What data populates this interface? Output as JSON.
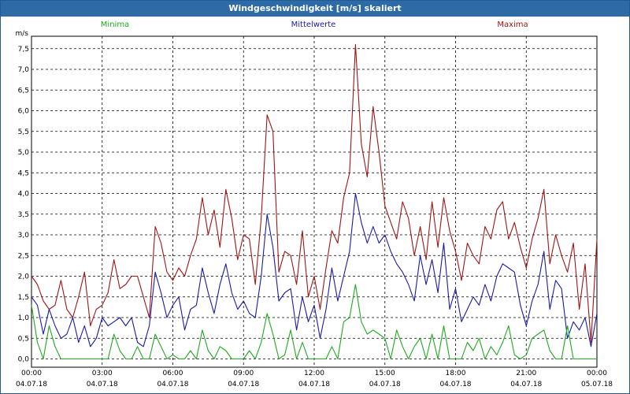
{
  "window": {
    "title": "Windgeschwindigkeit [m/s] skaliert"
  },
  "chart_data": {
    "type": "line",
    "title": "Windgeschwindigkeit [m/s] skaliert",
    "ylabel": "m/s",
    "xlabel": "",
    "ylim": [
      -0.2,
      7.8
    ],
    "yticks": [
      0.0,
      0.5,
      1.0,
      1.5,
      2.0,
      2.5,
      3.0,
      3.5,
      4.0,
      4.5,
      5.0,
      5.5,
      6.0,
      6.5,
      7.0,
      7.5
    ],
    "ytick_labels": [
      "0,0",
      "0,5",
      "1,0",
      "1,5",
      "2,0",
      "2,5",
      "3,0",
      "3,5",
      "4,0",
      "4,5",
      "5,0",
      "5,5",
      "6,0",
      "6,5",
      "7,0",
      "7,5"
    ],
    "xlim": [
      0,
      24
    ],
    "xticks": [
      0,
      3,
      6,
      9,
      12,
      15,
      18,
      21,
      24
    ],
    "xtick_times": [
      "00:00",
      "03:00",
      "06:00",
      "09:00",
      "12:00",
      "15:00",
      "18:00",
      "21:00",
      "00:00"
    ],
    "xtick_dates": [
      "04.07.18",
      "04.07.18",
      "04.07.18",
      "04.07.18",
      "04.07.18",
      "04.07.18",
      "04.07.18",
      "04.07.18",
      "05.07.18"
    ],
    "grid": true,
    "legend": [
      "Minima",
      "Mittelwerte",
      "Maxima"
    ],
    "colors": {
      "Minima": "#1faa1f",
      "Mittelwerte": "#1a1aaa",
      "Maxima": "#a01414"
    },
    "series": [
      {
        "name": "Maxima",
        "x": [
          0,
          0.25,
          0.5,
          0.75,
          1,
          1.25,
          1.5,
          1.75,
          2,
          2.25,
          2.5,
          2.75,
          3,
          3.25,
          3.5,
          3.75,
          4,
          4.25,
          4.5,
          4.75,
          5,
          5.25,
          5.5,
          5.75,
          6,
          6.25,
          6.5,
          6.75,
          7,
          7.25,
          7.5,
          7.75,
          8,
          8.25,
          8.5,
          8.75,
          9,
          9.25,
          9.5,
          9.75,
          10,
          10.25,
          10.5,
          10.75,
          11,
          11.25,
          11.5,
          11.75,
          12,
          12.25,
          12.5,
          12.75,
          13,
          13.25,
          13.5,
          13.75,
          14,
          14.25,
          14.5,
          14.75,
          15,
          15.25,
          15.5,
          15.75,
          16,
          16.25,
          16.5,
          16.75,
          17,
          17.25,
          17.5,
          17.75,
          18,
          18.25,
          18.5,
          18.75,
          19,
          19.25,
          19.5,
          19.75,
          20,
          20.25,
          20.5,
          20.75,
          21,
          21.25,
          21.5,
          21.75,
          22,
          22.25,
          22.5,
          22.75,
          23,
          23.25,
          23.5,
          23.75,
          24
        ],
        "y": [
          2.0,
          1.8,
          1.4,
          1.2,
          1.3,
          1.9,
          1.2,
          1.0,
          1.5,
          2.1,
          0.8,
          1.2,
          1.3,
          1.6,
          2.4,
          1.7,
          1.8,
          2.0,
          2.0,
          1.5,
          1.0,
          3.2,
          2.8,
          2.1,
          1.9,
          2.2,
          2.0,
          2.5,
          2.9,
          3.9,
          3.0,
          3.6,
          2.7,
          4.1,
          3.4,
          2.4,
          3.0,
          2.9,
          1.8,
          3.4,
          5.9,
          5.5,
          2.1,
          2.6,
          2.5,
          1.8,
          3.1,
          1.5,
          2.0,
          1.2,
          2.2,
          3.1,
          2.8,
          3.9,
          4.5,
          7.6,
          5.2,
          4.4,
          6.1,
          5.0,
          3.7,
          3.3,
          2.9,
          3.8,
          3.4,
          2.5,
          3.2,
          2.4,
          3.8,
          2.7,
          3.9,
          3.1,
          2.6,
          1.9,
          2.8,
          2.5,
          2.3,
          3.2,
          2.9,
          3.6,
          3.8,
          2.9,
          3.3,
          2.7,
          2.2,
          2.9,
          3.4,
          4.1,
          2.3,
          3.0,
          2.5,
          2.1,
          2.8,
          1.2,
          2.3,
          0.4,
          2.9
        ]
      },
      {
        "name": "Mittelwerte",
        "x": [
          0,
          0.25,
          0.5,
          0.75,
          1,
          1.25,
          1.5,
          1.75,
          2,
          2.25,
          2.5,
          2.75,
          3,
          3.25,
          3.5,
          3.75,
          4,
          4.25,
          4.5,
          4.75,
          5,
          5.25,
          5.5,
          5.75,
          6,
          6.25,
          6.5,
          6.75,
          7,
          7.25,
          7.5,
          7.75,
          8,
          8.25,
          8.5,
          8.75,
          9,
          9.25,
          9.5,
          9.75,
          10,
          10.25,
          10.5,
          10.75,
          11,
          11.25,
          11.5,
          11.75,
          12,
          12.25,
          12.5,
          12.75,
          13,
          13.25,
          13.5,
          13.75,
          14,
          14.25,
          14.5,
          14.75,
          15,
          15.25,
          15.5,
          15.75,
          16,
          16.25,
          16.5,
          16.75,
          17,
          17.25,
          17.5,
          17.75,
          18,
          18.25,
          18.5,
          18.75,
          19,
          19.25,
          19.5,
          19.75,
          20,
          20.25,
          20.5,
          20.75,
          21,
          21.25,
          21.5,
          21.75,
          22,
          22.25,
          22.5,
          22.75,
          23,
          23.25,
          23.5,
          23.75,
          24
        ],
        "y": [
          1.5,
          1.3,
          0.6,
          1.2,
          0.8,
          0.5,
          0.6,
          1.0,
          0.4,
          0.8,
          0.3,
          0.5,
          1.0,
          0.8,
          0.9,
          1.0,
          0.8,
          1.0,
          0.4,
          0.3,
          0.8,
          2.1,
          1.6,
          1.0,
          1.3,
          1.5,
          0.7,
          1.2,
          1.3,
          2.2,
          1.6,
          1.1,
          1.8,
          2.3,
          1.6,
          1.2,
          1.4,
          1.1,
          1.0,
          2.0,
          3.5,
          2.7,
          1.4,
          1.6,
          1.7,
          0.7,
          1.5,
          0.9,
          1.3,
          0.5,
          1.2,
          2.2,
          1.4,
          2.0,
          2.6,
          4.0,
          3.3,
          2.8,
          3.2,
          2.8,
          3.0,
          2.6,
          2.3,
          2.1,
          1.8,
          1.4,
          2.5,
          1.8,
          2.4,
          1.6,
          2.8,
          1.2,
          1.7,
          0.9,
          1.2,
          1.5,
          1.3,
          1.8,
          1.4,
          2.0,
          2.3,
          2.2,
          2.1,
          1.3,
          0.8,
          1.4,
          1.8,
          2.6,
          1.2,
          1.9,
          1.7,
          0.5,
          0.9,
          0.7,
          1.0,
          0.3,
          1.1
        ]
      },
      {
        "name": "Minima",
        "x": [
          0,
          0.25,
          0.5,
          0.75,
          1,
          1.25,
          1.5,
          1.75,
          2,
          2.25,
          2.5,
          2.75,
          3,
          3.25,
          3.5,
          3.75,
          4,
          4.25,
          4.5,
          4.75,
          5,
          5.25,
          5.5,
          5.75,
          6,
          6.25,
          6.5,
          6.75,
          7,
          7.25,
          7.5,
          7.75,
          8,
          8.25,
          8.5,
          8.75,
          9,
          9.25,
          9.5,
          9.75,
          10,
          10.25,
          10.5,
          10.75,
          11,
          11.25,
          11.5,
          11.75,
          12,
          12.25,
          12.5,
          12.75,
          13,
          13.25,
          13.5,
          13.75,
          14,
          14.25,
          14.5,
          14.75,
          15,
          15.25,
          15.5,
          15.75,
          16,
          16.25,
          16.5,
          16.75,
          17,
          17.25,
          17.5,
          17.75,
          18,
          18.25,
          18.5,
          18.75,
          19,
          19.25,
          19.5,
          19.75,
          20,
          20.25,
          20.5,
          20.75,
          21,
          21.25,
          21.5,
          21.75,
          22,
          22.25,
          22.5,
          22.75,
          23,
          23.25,
          23.5,
          23.75,
          24
        ],
        "y": [
          1.3,
          0.4,
          0.0,
          0.8,
          0.3,
          0.0,
          0.0,
          0.0,
          0.0,
          0.0,
          0.0,
          0.0,
          0.0,
          0.0,
          0.6,
          0.2,
          0.0,
          0.0,
          0.3,
          0.0,
          0.0,
          0.6,
          0.3,
          0.0,
          0.1,
          0.0,
          0.0,
          0.2,
          0.0,
          0.7,
          0.2,
          0.0,
          0.3,
          0.2,
          0.0,
          0.0,
          0.0,
          0.2,
          0.0,
          0.4,
          1.1,
          0.6,
          0.0,
          0.1,
          0.7,
          0.0,
          0.4,
          0.0,
          0.0,
          0.0,
          0.0,
          0.3,
          0.0,
          0.9,
          1.0,
          1.8,
          0.9,
          0.6,
          0.7,
          0.6,
          0.5,
          0.0,
          0.7,
          0.3,
          0.0,
          0.3,
          0.5,
          0.0,
          0.6,
          0.0,
          0.8,
          0.0,
          0.0,
          0.0,
          0.4,
          0.2,
          0.5,
          0.0,
          0.3,
          0.1,
          0.4,
          0.8,
          0.1,
          0.0,
          0.1,
          0.5,
          0.6,
          0.7,
          0.2,
          0.0,
          0.0,
          0.8,
          0.0,
          0.0,
          0.0,
          0.0,
          0.0
        ]
      }
    ]
  }
}
